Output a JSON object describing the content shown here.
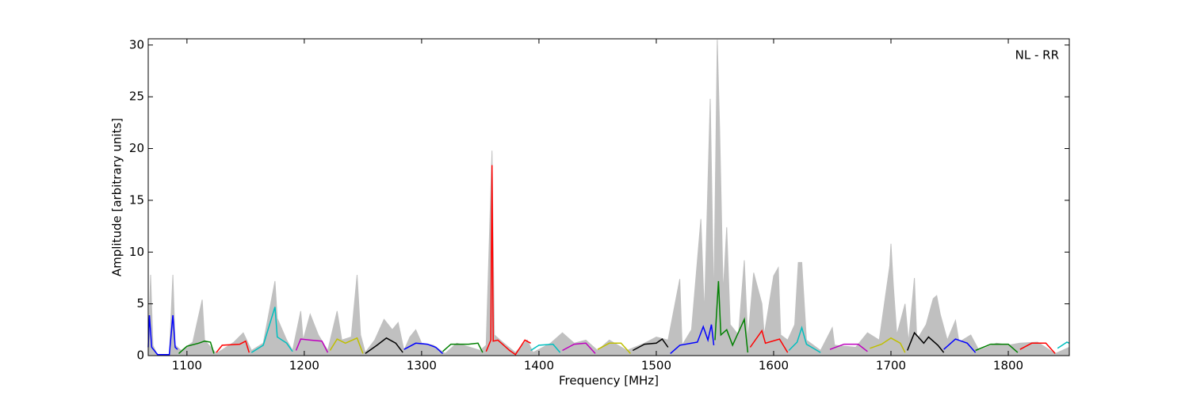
{
  "chart_data": {
    "type": "line",
    "xlabel": "Frequency [MHz]",
    "ylabel": "Amplitude [arbitrary units]",
    "annotation": "NL - RR",
    "xlim": [
      1067,
      1852
    ],
    "ylim": [
      0,
      30.6
    ],
    "xticks": [
      1100,
      1200,
      1300,
      1400,
      1500,
      1600,
      1700,
      1800
    ],
    "yticks": [
      0,
      5,
      10,
      15,
      20,
      25,
      30
    ],
    "grid": false,
    "series": [
      {
        "color": "#c0c0c0",
        "area": true,
        "x": [
          1067,
          1069,
          1071,
          1075,
          1085,
          1088,
          1090,
          1095,
          1105,
          1113,
          1115,
          1125,
          1140,
          1148,
          1155,
          1165,
          1175,
          1177,
          1185,
          1190,
          1197,
          1199,
          1205,
          1212,
          1220,
          1228,
          1232,
          1240,
          1245,
          1248,
          1252,
          1260,
          1268,
          1275,
          1280,
          1285,
          1290,
          1295,
          1300,
          1310,
          1320,
          1330,
          1350,
          1355,
          1360,
          1362,
          1370,
          1380,
          1390,
          1395,
          1410,
          1420,
          1430,
          1440,
          1450,
          1460,
          1475,
          1490,
          1500,
          1510,
          1520,
          1522,
          1530,
          1538,
          1541,
          1546,
          1549,
          1552,
          1554,
          1557,
          1560,
          1563,
          1570,
          1575,
          1578,
          1583,
          1590,
          1592,
          1600,
          1604,
          1606,
          1612,
          1618,
          1621,
          1624,
          1628,
          1640,
          1650,
          1652,
          1670,
          1680,
          1690,
          1699,
          1700,
          1702,
          1705,
          1712,
          1715,
          1720,
          1722,
          1730,
          1736,
          1739,
          1742,
          1748,
          1755,
          1758,
          1768,
          1775,
          1790,
          1800,
          1810,
          1825,
          1840,
          1852
        ],
        "values": [
          0.5,
          7.8,
          1,
          0,
          0,
          7.8,
          1,
          0.5,
          1.3,
          5.4,
          1.5,
          0.2,
          1.3,
          2.2,
          0.5,
          1.2,
          7.2,
          3.6,
          1.5,
          0.5,
          4.3,
          1.5,
          4,
          2,
          0.5,
          4.3,
          1.5,
          1.8,
          7.8,
          2,
          0.3,
          1.5,
          3.5,
          2.5,
          3.2,
          0.5,
          1.8,
          2.5,
          1.2,
          1,
          0.2,
          1.2,
          0.5,
          1,
          19.8,
          2,
          1.2,
          0.3,
          1.5,
          0.3,
          1.2,
          2.2,
          1.2,
          1.5,
          0.5,
          1.5,
          0.5,
          1.2,
          1.8,
          1.5,
          7.4,
          1,
          2.5,
          13.2,
          4,
          24.8,
          5,
          30.5,
          21.8,
          6,
          12.4,
          3,
          2,
          9.2,
          1.5,
          8,
          5,
          2,
          7.7,
          8.5,
          2,
          1.5,
          3,
          9,
          9,
          1.5,
          0.5,
          2.7,
          1,
          0.8,
          2.2,
          1.5,
          8.7,
          10.8,
          6.8,
          2,
          5,
          1.3,
          7.5,
          1.5,
          3,
          5.5,
          5.8,
          4,
          1.5,
          3.4,
          1.3,
          2,
          0.5,
          1.2,
          1,
          1.2,
          1.3,
          0.2,
          0.8
        ]
      },
      {
        "color": "#0000ff",
        "x": [
          1067,
          1068,
          1070,
          1075,
          1085,
          1088,
          1090,
          1092
        ],
        "values": [
          0.8,
          3.9,
          0.8,
          0.1,
          0.1,
          3.9,
          0.8,
          0.6
        ]
      },
      {
        "color": "#008000",
        "x": [
          1093,
          1100,
          1110,
          1115,
          1120,
          1123
        ],
        "values": [
          0.2,
          0.9,
          1.2,
          1.4,
          1.3,
          0.2
        ]
      },
      {
        "color": "#ff0000",
        "x": [
          1125,
          1130,
          1145,
          1150,
          1153
        ],
        "values": [
          0.3,
          1,
          1.1,
          1.4,
          0.3
        ]
      },
      {
        "color": "#00bfbf",
        "x": [
          1155,
          1165,
          1175,
          1177,
          1185,
          1190
        ],
        "values": [
          0.3,
          1,
          4.7,
          1.8,
          1.2,
          0.4
        ]
      },
      {
        "color": "#bf00bf",
        "x": [
          1193,
          1197,
          1205,
          1215,
          1220
        ],
        "values": [
          0.5,
          1.6,
          1.5,
          1.4,
          0.3
        ]
      },
      {
        "color": "#bfbf00",
        "x": [
          1222,
          1228,
          1235,
          1245,
          1250
        ],
        "values": [
          0.5,
          1.6,
          1.2,
          1.7,
          0.2
        ]
      },
      {
        "color": "#000000",
        "x": [
          1252,
          1262,
          1270,
          1278,
          1284
        ],
        "values": [
          0.2,
          1,
          1.7,
          1.2,
          0.3
        ]
      },
      {
        "color": "#0000ff",
        "x": [
          1285,
          1295,
          1305,
          1312,
          1318
        ],
        "values": [
          0.6,
          1.2,
          1.1,
          0.8,
          0.2
        ]
      },
      {
        "color": "#008000",
        "x": [
          1318,
          1325,
          1340,
          1348,
          1352
        ],
        "values": [
          0.4,
          1.1,
          1.1,
          1.2,
          0.3
        ]
      },
      {
        "color": "#ff0000",
        "x": [
          1355,
          1359,
          1360,
          1361,
          1365,
          1375,
          1380,
          1388,
          1393
        ],
        "values": [
          0.4,
          1.5,
          18.4,
          1.4,
          1.5,
          0.5,
          0.1,
          1.5,
          1.2
        ]
      },
      {
        "color": "#00bfbf",
        "x": [
          1393,
          1400,
          1412,
          1418
        ],
        "values": [
          0.5,
          1,
          1.1,
          0.3
        ]
      },
      {
        "color": "#bf00bf",
        "x": [
          1420,
          1430,
          1440,
          1448
        ],
        "values": [
          0.5,
          1.1,
          1.2,
          0.2
        ]
      },
      {
        "color": "#bfbf00",
        "x": [
          1450,
          1460,
          1470,
          1478
        ],
        "values": [
          0.6,
          1.2,
          1.2,
          0.2
        ]
      },
      {
        "color": "#000000",
        "x": [
          1480,
          1490,
          1500,
          1505,
          1510
        ],
        "values": [
          0.5,
          1.1,
          1.2,
          1.6,
          0.8
        ]
      },
      {
        "color": "#0000ff",
        "x": [
          1512,
          1520,
          1535,
          1540,
          1544,
          1547,
          1549
        ],
        "values": [
          0.2,
          1,
          1.3,
          2.8,
          1.5,
          3,
          1
        ]
      },
      {
        "color": "#008000",
        "x": [
          1550,
          1553,
          1555,
          1560,
          1565,
          1575,
          1578
        ],
        "values": [
          1.5,
          7.2,
          2,
          2.5,
          1,
          3.5,
          0.3
        ]
      },
      {
        "color": "#ff0000",
        "x": [
          1580,
          1590,
          1593,
          1605,
          1612
        ],
        "values": [
          0.8,
          2.4,
          1.2,
          1.6,
          0.3
        ]
      },
      {
        "color": "#00bfbf",
        "x": [
          1613,
          1620,
          1624,
          1628,
          1640
        ],
        "values": [
          0.5,
          1.3,
          2.7,
          1.1,
          0.3
        ]
      },
      {
        "color": "#bf00bf",
        "x": [
          1648,
          1660,
          1672,
          1680
        ],
        "values": [
          0.6,
          1.1,
          1.1,
          0.4
        ]
      },
      {
        "color": "#bfbf00",
        "x": [
          1682,
          1692,
          1700,
          1708,
          1712
        ],
        "values": [
          0.7,
          1.1,
          1.7,
          1.2,
          0.3
        ]
      },
      {
        "color": "#000000",
        "x": [
          1714,
          1720,
          1728,
          1732,
          1740,
          1745
        ],
        "values": [
          0.5,
          2.2,
          1.2,
          1.8,
          1,
          0.3
        ]
      },
      {
        "color": "#0000ff",
        "x": [
          1745,
          1755,
          1765,
          1772
        ],
        "values": [
          0.6,
          1.6,
          1.2,
          0.3
        ]
      },
      {
        "color": "#008000",
        "x": [
          1772,
          1785,
          1800,
          1808
        ],
        "values": [
          0.5,
          1.1,
          1.1,
          0.3
        ]
      },
      {
        "color": "#ff0000",
        "x": [
          1810,
          1820,
          1832,
          1840
        ],
        "values": [
          0.6,
          1.2,
          1.2,
          0.2
        ]
      },
      {
        "color": "#00bfbf",
        "x": [
          1842,
          1850,
          1852
        ],
        "values": [
          0.7,
          1.3,
          1.2
        ]
      }
    ]
  }
}
